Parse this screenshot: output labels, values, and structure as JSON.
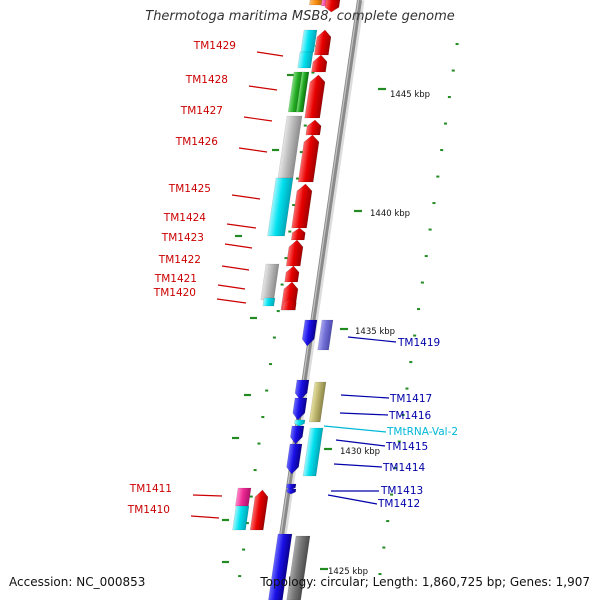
{
  "title": "Thermotoga maritima MSB8, complete genome",
  "accession_text": "Accession: NC_000853",
  "topology_text": "Topology: circular; Length: 1,860,725 bp; Genes: 1,907",
  "colors": {
    "forward_label": "#cc0000",
    "reverse_label": "#0000aa",
    "trna_label": "#00b8d8",
    "backbone": "#8a8a8a",
    "tick": "#228b22"
  },
  "ruler_labels": [
    "1445 kbp",
    "1440 kbp",
    "1435 kbp",
    "1430 kbp",
    "1425 kbp"
  ],
  "left_gene_labels": [
    "TM1429",
    "TM1428",
    "TM1427",
    "TM1426",
    "TM1425",
    "TM1424",
    "TM1423",
    "TM1422",
    "TM1421",
    "TM1420",
    "TM1411",
    "TM1410"
  ],
  "right_gene_labels": [
    "TM1419",
    "TM1417",
    "TM1416",
    "TMtRNA-Val-2",
    "TM1415",
    "TM1414",
    "TM1413",
    "TM1412"
  ]
}
